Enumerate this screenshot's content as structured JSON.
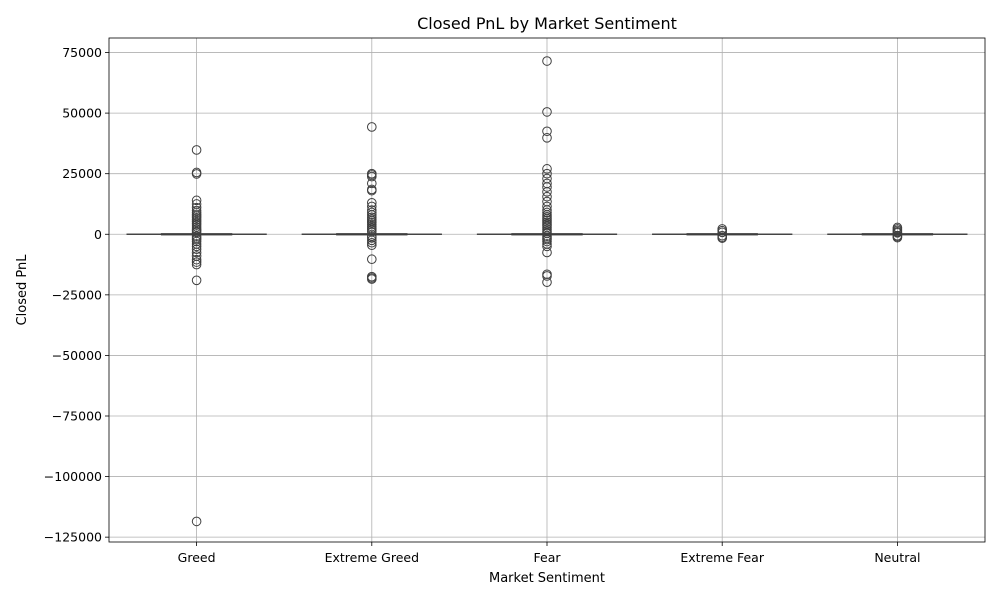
{
  "chart_data": {
    "type": "box",
    "title": "Closed PnL by Market Sentiment",
    "xlabel": "Market Sentiment",
    "ylabel": "Closed PnL",
    "ylim": [
      -127000,
      81000
    ],
    "yticks": [
      75000,
      50000,
      25000,
      0,
      -25000,
      -50000,
      -75000,
      -100000,
      -125000
    ],
    "ytick_labels": [
      "75000",
      "50000",
      "25000",
      "0",
      "−25000",
      "−50000",
      "−75000",
      "−100000",
      "−125000"
    ],
    "grid": true,
    "categories": [
      "Greed",
      "Extreme Greed",
      "Fear",
      "Extreme Fear",
      "Neutral"
    ],
    "boxes": [
      {
        "category": "Greed",
        "q1": 0,
        "median": 0,
        "q3": 0,
        "whisker_low": 0,
        "whisker_high": 0,
        "outliers": [
          34800,
          25500,
          24900,
          14000,
          12500,
          11000,
          9800,
          9000,
          8200,
          7500,
          6800,
          6000,
          5200,
          4500,
          3800,
          3000,
          2200,
          1500,
          800,
          -800,
          -1500,
          -2200,
          -3000,
          -4000,
          -5000,
          -6200,
          -7500,
          -9000,
          -10500,
          -11500,
          -12500,
          -19000,
          -118500
        ]
      },
      {
        "category": "Extreme Greed",
        "q1": 0,
        "median": 0,
        "q3": 0,
        "whisker_low": 0,
        "whisker_high": 0,
        "outliers": [
          44300,
          25000,
          24500,
          23800,
          21000,
          18500,
          18000,
          13000,
          11500,
          10000,
          9000,
          8000,
          7000,
          6200,
          5500,
          4800,
          4000,
          3200,
          2500,
          1800,
          1000,
          -800,
          -1500,
          -2500,
          -3500,
          -4500,
          -10300,
          -17500,
          -18000,
          -18500
        ]
      },
      {
        "category": "Fear",
        "q1": 0,
        "median": 0,
        "q3": 0,
        "whisker_low": 0,
        "whisker_high": 0,
        "outliers": [
          71500,
          50500,
          42500,
          39800,
          27000,
          25000,
          23000,
          21000,
          19500,
          17500,
          15500,
          13500,
          11500,
          10000,
          9000,
          8000,
          7200,
          6500,
          5800,
          5000,
          4200,
          3500,
          2800,
          2000,
          1200,
          500,
          -800,
          -1500,
          -2200,
          -3000,
          -4000,
          -5000,
          -7500,
          -16500,
          -17200,
          -19800
        ]
      },
      {
        "category": "Extreme Fear",
        "q1": 0,
        "median": 0,
        "q3": 0,
        "whisker_low": 0,
        "whisker_high": 0,
        "outliers": [
          2200,
          1500,
          800,
          -600,
          -1200,
          -1600
        ]
      },
      {
        "category": "Neutral",
        "q1": 0,
        "median": 0,
        "q3": 0,
        "whisker_low": 0,
        "whisker_high": 0,
        "outliers": [
          2800,
          2200,
          1600,
          1000,
          600,
          -600,
          -1000,
          -1400
        ]
      }
    ]
  }
}
